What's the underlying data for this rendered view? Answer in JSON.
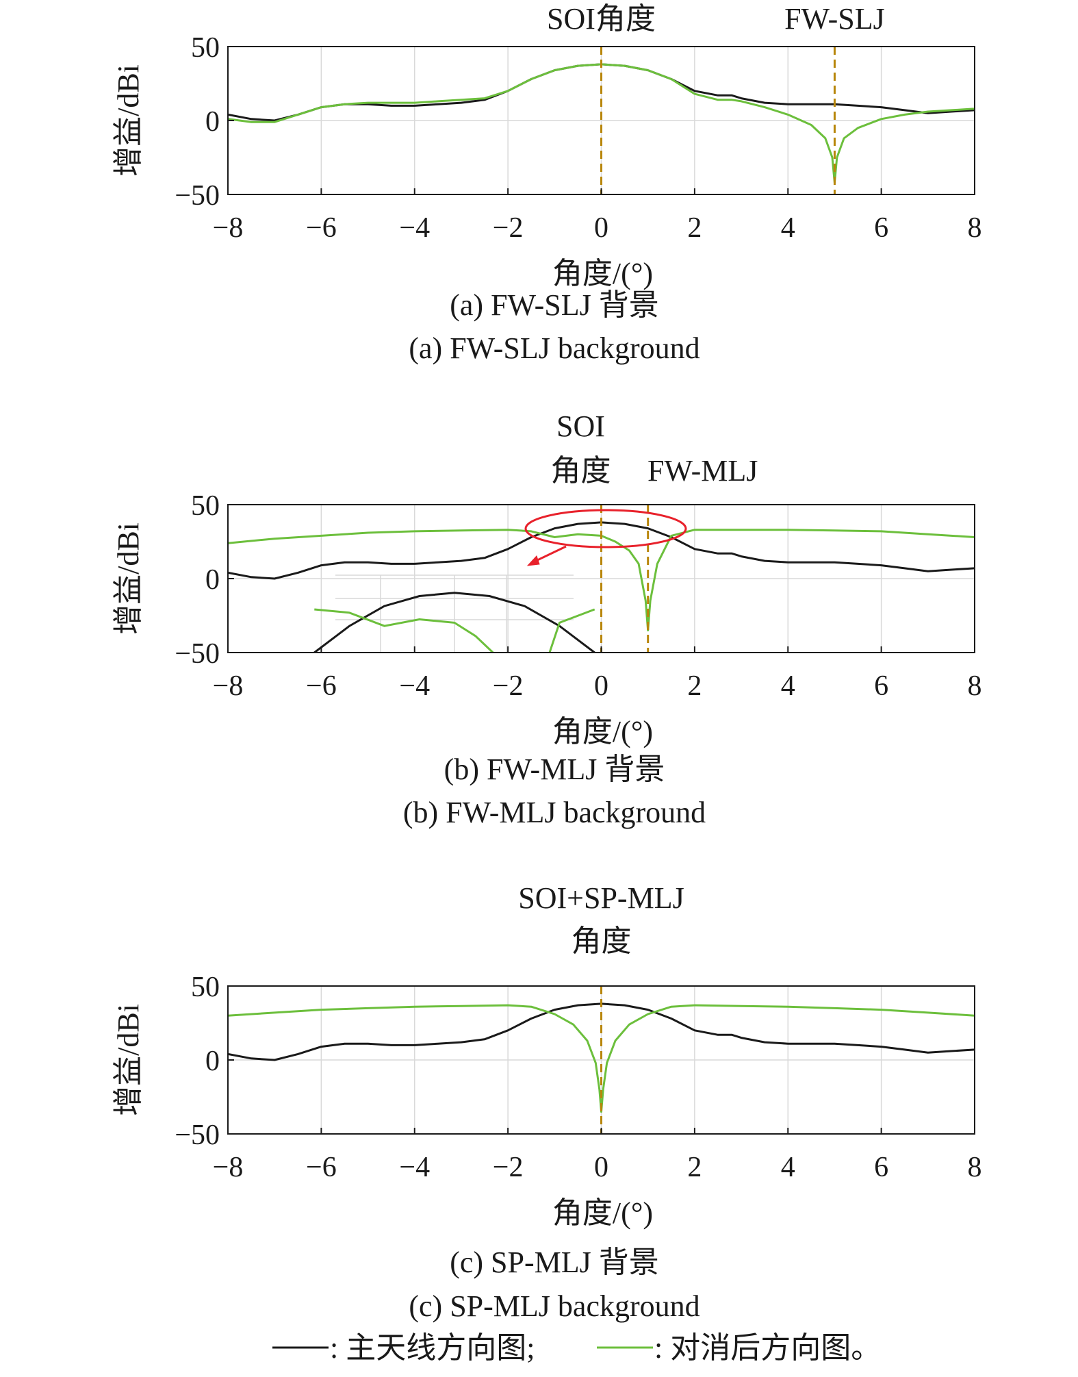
{
  "figure": {
    "legend": {
      "main_label": ": 主天线方向图;",
      "cancel_label": ": 对消后方向图。",
      "main_color": "#1a1a1a",
      "cancel_color": "#6cbf3c"
    },
    "marker_color": "#b8860b",
    "ellipse_color": "#e8212b"
  },
  "chart_data": [
    {
      "type": "line",
      "xlabel": "角度/(°)",
      "ylabel": "增益/dBi",
      "xlim": [
        -8,
        8
      ],
      "ylim": [
        -50,
        50
      ],
      "xticks": [
        "−8",
        "−6",
        "−4",
        "−2",
        "0",
        "2",
        "4",
        "6",
        "8"
      ],
      "yticks": [
        "50",
        "0",
        "−50"
      ],
      "grid": true,
      "markers": [
        {
          "x": 0,
          "label_lines": [
            "SOI角度"
          ]
        },
        {
          "x": 5,
          "label_lines": [
            "FW-SLJ"
          ]
        }
      ],
      "caption_cn": "(a) FW-SLJ 背景",
      "caption_en": "(a) FW-SLJ background",
      "series": [
        {
          "name": "主天线方向图",
          "color": "#1a1a1a",
          "x": [
            -8,
            -7.5,
            -7,
            -6.5,
            -6,
            -5.5,
            -5,
            -4.5,
            -4,
            -3.5,
            -3,
            -2.5,
            -2,
            -1.5,
            -1,
            -0.5,
            0,
            0.5,
            1,
            1.5,
            2,
            2.5,
            2.8,
            3,
            3.5,
            4,
            4.5,
            5,
            5.5,
            6,
            6.5,
            7,
            7.5,
            8
          ],
          "y": [
            4,
            1,
            0,
            4,
            9,
            11,
            11,
            10,
            10,
            11,
            12,
            14,
            20,
            28,
            34,
            37,
            38,
            37,
            34,
            28,
            20,
            17,
            17,
            15,
            12,
            11,
            11,
            11,
            10,
            9,
            7,
            5,
            6,
            7
          ]
        },
        {
          "name": "对消后方向图",
          "color": "#6cbf3c",
          "x": [
            -8,
            -7.5,
            -7,
            -6.5,
            -6,
            -5.5,
            -5,
            -4.5,
            -4,
            -3.5,
            -3,
            -2.5,
            -2,
            -1.5,
            -1,
            -0.5,
            0,
            0.5,
            1,
            1.5,
            2,
            2.5,
            2.8,
            3,
            3.5,
            4,
            4.5,
            4.8,
            4.95,
            5,
            5.05,
            5.2,
            5.5,
            6,
            6.5,
            7,
            7.5,
            8
          ],
          "y": [
            1,
            -1,
            -1,
            4,
            9,
            11,
            12,
            12,
            12,
            13,
            14,
            15,
            20,
            28,
            34,
            37,
            38,
            37,
            34,
            28,
            18,
            14,
            14,
            13,
            9,
            4,
            -3,
            -12,
            -25,
            -42,
            -25,
            -12,
            -5,
            1,
            4,
            6,
            7,
            8
          ]
        }
      ]
    },
    {
      "type": "line",
      "xlabel": "角度/(°)",
      "ylabel": "增益/dBi",
      "xlim": [
        -8,
        8
      ],
      "ylim": [
        -50,
        50
      ],
      "xticks": [
        "−8",
        "−6",
        "−4",
        "−2",
        "0",
        "2",
        "4",
        "6",
        "8"
      ],
      "yticks": [
        "50",
        "0",
        "−50"
      ],
      "grid": true,
      "markers": [
        {
          "x": 0,
          "label_lines": [
            "SOI",
            "角度"
          ]
        },
        {
          "x": 1,
          "label_lines": [
            "FW-MLJ"
          ]
        }
      ],
      "caption_cn": "(b) FW-MLJ 背景",
      "caption_en": "(b) FW-MLJ background",
      "series": [
        {
          "name": "主天线方向图",
          "color": "#1a1a1a",
          "x": [
            -8,
            -7.5,
            -7,
            -6.5,
            -6,
            -5.5,
            -5,
            -4.5,
            -4,
            -3.5,
            -3,
            -2.5,
            -2,
            -1.5,
            -1,
            -0.5,
            0,
            0.5,
            1,
            1.5,
            2,
            2.5,
            2.8,
            3,
            3.5,
            4,
            4.5,
            5,
            5.5,
            6,
            6.5,
            7,
            7.5,
            8
          ],
          "y": [
            4,
            1,
            0,
            4,
            9,
            11,
            11,
            10,
            10,
            11,
            12,
            14,
            20,
            28,
            34,
            37,
            38,
            37,
            34,
            28,
            20,
            17,
            17,
            15,
            12,
            11,
            11,
            11,
            10,
            9,
            7,
            5,
            6,
            7
          ]
        },
        {
          "name": "对消后方向图",
          "color": "#6cbf3c",
          "x": [
            -8,
            -7,
            -6,
            -5,
            -4,
            -3,
            -2,
            -1.5,
            -1,
            -0.5,
            0,
            0.3,
            0.6,
            0.8,
            0.95,
            1,
            1.05,
            1.2,
            1.5,
            2,
            3,
            4,
            5,
            6,
            7,
            8
          ],
          "y": [
            24,
            27,
            29,
            31,
            32,
            32.5,
            33,
            32,
            28,
            30,
            29,
            25,
            19,
            10,
            -15,
            -35,
            -15,
            10,
            29,
            33,
            33,
            33,
            32.5,
            32,
            30,
            28
          ]
        }
      ]
    },
    {
      "type": "line",
      "xlabel": "角度/(°)",
      "ylabel": "增益/dBi",
      "xlim": [
        -8,
        8
      ],
      "ylim": [
        -50,
        50
      ],
      "xticks": [
        "−8",
        "−6",
        "−4",
        "−2",
        "0",
        "2",
        "4",
        "6",
        "8"
      ],
      "yticks": [
        "50",
        "0",
        "−50"
      ],
      "grid": true,
      "markers": [
        {
          "x": 0,
          "label_lines": [
            "SOI+SP-MLJ",
            "角度"
          ]
        }
      ],
      "caption_cn": "(c) SP-MLJ 背景",
      "caption_en": "(c) SP-MLJ background",
      "series": [
        {
          "name": "主天线方向图",
          "color": "#1a1a1a",
          "x": [
            -8,
            -7.5,
            -7,
            -6.5,
            -6,
            -5.5,
            -5,
            -4.5,
            -4,
            -3.5,
            -3,
            -2.5,
            -2,
            -1.5,
            -1,
            -0.5,
            0,
            0.5,
            1,
            1.5,
            2,
            2.5,
            2.8,
            3,
            3.5,
            4,
            4.5,
            5,
            5.5,
            6,
            6.5,
            7,
            7.5,
            8
          ],
          "y": [
            4,
            1,
            0,
            4,
            9,
            11,
            11,
            10,
            10,
            11,
            12,
            14,
            20,
            28,
            34,
            37,
            38,
            37,
            34,
            28,
            20,
            17,
            17,
            15,
            12,
            11,
            11,
            11,
            10,
            9,
            7,
            5,
            6,
            7
          ]
        },
        {
          "name": "对消后方向图",
          "color": "#6cbf3c",
          "x": [
            -8,
            -7,
            -6,
            -5,
            -4,
            -3,
            -2,
            -1.5,
            -1,
            -0.6,
            -0.3,
            -0.12,
            -0.04,
            0,
            0.04,
            0.12,
            0.3,
            0.6,
            1,
            1.5,
            2,
            3,
            4,
            5,
            6,
            7,
            8
          ],
          "y": [
            30,
            32,
            34,
            35,
            36,
            36.5,
            37,
            36,
            31,
            24,
            13,
            -2,
            -20,
            -35,
            -20,
            -2,
            13,
            24,
            31,
            36,
            37,
            36.5,
            36,
            35,
            34,
            32,
            30
          ]
        }
      ]
    }
  ]
}
